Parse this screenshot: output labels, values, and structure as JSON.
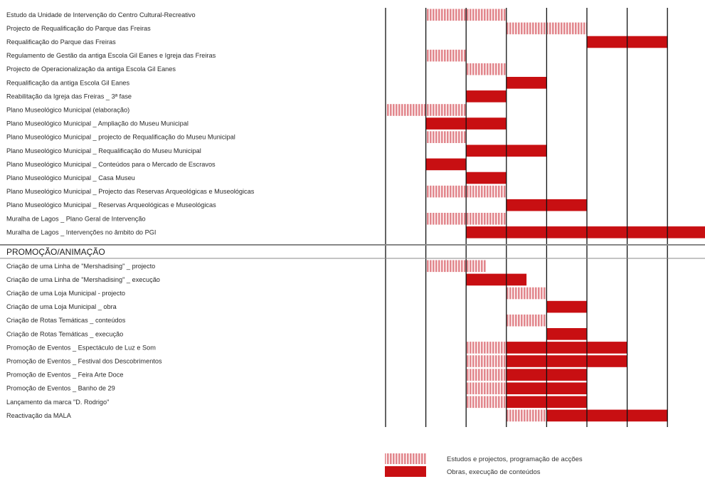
{
  "colors": {
    "study": "#e2878d",
    "study_stripe": "#ffffff",
    "works": "#c80f12",
    "gridline": "#111111",
    "separator": "#888888"
  },
  "chart_data": {
    "type": "gantt",
    "periods": 8,
    "tasks": [
      {
        "label": "Estudo da Unidade de Intervenção do Centro Cultural-Recreativo",
        "bars": [
          {
            "start": 1,
            "end": 3,
            "kind": "study"
          }
        ]
      },
      {
        "label": "Projecto de Requalificação do Parque das Freiras",
        "bars": [
          {
            "start": 3,
            "end": 5,
            "kind": "study"
          }
        ]
      },
      {
        "label": "Requalificação do Parque das Freiras",
        "bars": [
          {
            "start": 5,
            "end": 7,
            "kind": "works"
          }
        ]
      },
      {
        "label": "Regulamento de Gestão da antiga Escola Gil Eanes e Igreja das Freiras",
        "bars": [
          {
            "start": 1,
            "end": 2,
            "kind": "study"
          }
        ]
      },
      {
        "label": "Projecto de Operacionalização da antiga Escola Gil Eanes",
        "bars": [
          {
            "start": 2,
            "end": 3,
            "kind": "study"
          }
        ]
      },
      {
        "label": "Requalificação da antiga Escola Gil Eanes",
        "bars": [
          {
            "start": 3,
            "end": 4,
            "kind": "works"
          }
        ]
      },
      {
        "label": "Reabilitação da Igreja das Freiras _ 3ª fase",
        "bars": [
          {
            "start": 2,
            "end": 3,
            "kind": "works"
          }
        ]
      },
      {
        "label": "Plano Museológico Municipal (elaboração)",
        "bars": [
          {
            "start": 0,
            "end": 2,
            "kind": "study"
          }
        ]
      },
      {
        "label": "Plano Museológico Municipal _ Ampliação do Museu Municipal",
        "bars": [
          {
            "start": 1,
            "end": 3,
            "kind": "works"
          }
        ]
      },
      {
        "label": "Plano Museológico Municipal _ projecto de Requalificação do Museu Municipal",
        "bars": [
          {
            "start": 1,
            "end": 2,
            "kind": "study"
          }
        ]
      },
      {
        "label": "Plano Museológico Municipal _ Requalificação do Museu Municipal",
        "bars": [
          {
            "start": 2,
            "end": 4,
            "kind": "works"
          }
        ]
      },
      {
        "label": "Plano Museológico Municipal _ Conteúdos para o Mercado de Escravos",
        "bars": [
          {
            "start": 1,
            "end": 2,
            "kind": "works"
          }
        ]
      },
      {
        "label": "Plano Museológico Municipal _ Casa Museu",
        "bars": [
          {
            "start": 2,
            "end": 3,
            "kind": "works"
          }
        ]
      },
      {
        "label": "Plano Museológico Municipal _ Projecto das Reservas Arqueológicas e Museológicas",
        "bars": [
          {
            "start": 1,
            "end": 3,
            "kind": "study"
          }
        ]
      },
      {
        "label": "Plano Museológico Municipal _ Reservas Arqueológicas e Museológicas",
        "bars": [
          {
            "start": 3,
            "end": 5,
            "kind": "works"
          }
        ]
      },
      {
        "label": "Muralha de Lagos _ Plano Geral de Intervenção",
        "bars": [
          {
            "start": 1,
            "end": 3,
            "kind": "study"
          }
        ]
      },
      {
        "label": "Muralha de Lagos _ Intervenções no âmbito do PGI",
        "bars": [
          {
            "start": 2,
            "end": 8,
            "kind": "works"
          }
        ]
      }
    ],
    "section": "PROMOÇÃO/ANIMAÇÃO",
    "section_tasks": [
      {
        "label": "Criação de uma Linha de \"Mershadising\" _ projecto",
        "bars": [
          {
            "start": 1,
            "end": 2.5,
            "kind": "study"
          }
        ]
      },
      {
        "label": "Criação de uma Linha de \"Mershadising\" _ execução",
        "bars": [
          {
            "start": 2,
            "end": 3.5,
            "kind": "works"
          }
        ]
      },
      {
        "label": "Criação de uma Loja Municipal - projecto",
        "bars": [
          {
            "start": 3,
            "end": 4,
            "kind": "study"
          }
        ]
      },
      {
        "label": "Criação de uma Loja Municipal _ obra",
        "bars": [
          {
            "start": 4,
            "end": 5,
            "kind": "works"
          }
        ]
      },
      {
        "label": "Criação de Rotas Temáticas _ conteúdos",
        "bars": [
          {
            "start": 3,
            "end": 4,
            "kind": "study"
          }
        ]
      },
      {
        "label": "Criação de Rotas Temáticas _ execução",
        "bars": [
          {
            "start": 4,
            "end": 5,
            "kind": "works"
          }
        ]
      },
      {
        "label": "Promoção de Eventos _ Espectáculo de Luz e Som",
        "bars": [
          {
            "start": 2,
            "end": 3,
            "kind": "study"
          },
          {
            "start": 3,
            "end": 6,
            "kind": "works"
          }
        ]
      },
      {
        "label": "Promoção de Eventos _ Festival dos Descobrimentos",
        "bars": [
          {
            "start": 2,
            "end": 3,
            "kind": "study"
          },
          {
            "start": 3,
            "end": 6,
            "kind": "works"
          }
        ]
      },
      {
        "label": "Promoção de Eventos _ Feira Arte Doce",
        "bars": [
          {
            "start": 2,
            "end": 3,
            "kind": "study"
          },
          {
            "start": 3,
            "end": 5,
            "kind": "works"
          }
        ]
      },
      {
        "label": "Promoção de Eventos _ Banho de 29",
        "bars": [
          {
            "start": 2,
            "end": 3,
            "kind": "study"
          },
          {
            "start": 3,
            "end": 5,
            "kind": "works"
          }
        ]
      },
      {
        "label": "Lançamento da marca \"D. Rodrigo\"",
        "bars": [
          {
            "start": 2,
            "end": 3,
            "kind": "study"
          },
          {
            "start": 3,
            "end": 5,
            "kind": "works"
          }
        ]
      },
      {
        "label": "Reactivação da MALA",
        "bars": [
          {
            "start": 3,
            "end": 4,
            "kind": "study"
          },
          {
            "start": 4,
            "end": 7,
            "kind": "works"
          }
        ]
      }
    ],
    "legend": [
      {
        "kind": "study",
        "label": "Estudos e projectos, programação de acções"
      },
      {
        "kind": "works",
        "label": "Obras, execução de conteúdos"
      }
    ]
  }
}
